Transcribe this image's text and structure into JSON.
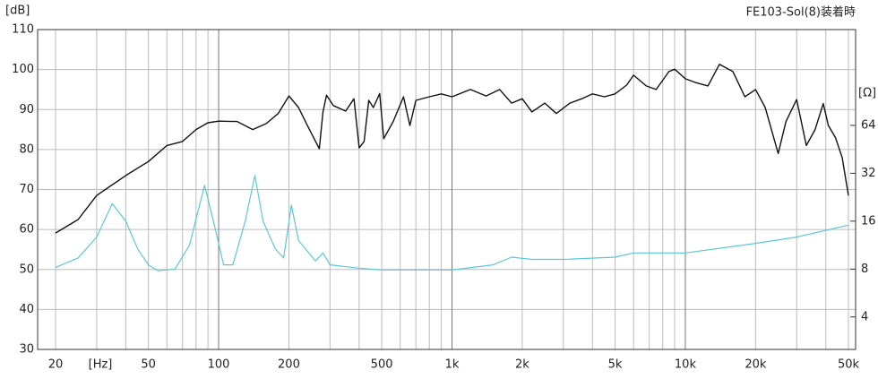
{
  "chart_data": {
    "type": "line",
    "title": "FE103-Sol(8)装着時",
    "y_unit": "[dB]",
    "x_unit": "[Hz]",
    "y2_unit": "[Ω]",
    "xscale": "log",
    "y2scale": "log",
    "grid": true,
    "xlim": [
      20,
      50000
    ],
    "ylim": [
      30,
      110
    ],
    "y2lim": [
      2.5,
      256
    ],
    "xticks": [
      20,
      50,
      100,
      200,
      500,
      {
        "value": 1000,
        "label": "1k"
      },
      {
        "value": 2000,
        "label": "2k"
      },
      {
        "value": 5000,
        "label": "5k"
      },
      {
        "value": 10000,
        "label": "10k"
      },
      {
        "value": 20000,
        "label": "20k"
      },
      {
        "value": 50000,
        "label": "50k"
      }
    ],
    "xminor": [
      30,
      40,
      60,
      70,
      80,
      90,
      300,
      400,
      600,
      700,
      800,
      900,
      3000,
      4000,
      6000,
      7000,
      8000,
      9000,
      30000,
      40000
    ],
    "yticks": [
      30,
      40,
      50,
      60,
      70,
      80,
      90,
      100,
      110
    ],
    "y2ticks": [
      4,
      8,
      16,
      32,
      64
    ],
    "series": [
      {
        "color": "#111111",
        "x": [
          20,
          25,
          30,
          40,
          50,
          60,
          70,
          80,
          90,
          100,
          120,
          140,
          160,
          180,
          200,
          220,
          240,
          270,
          280,
          290,
          310,
          350,
          380,
          400,
          420,
          440,
          460,
          490,
          510,
          560,
          620,
          660,
          700,
          800,
          900,
          1000,
          1200,
          1400,
          1600,
          1800,
          2000,
          2200,
          2500,
          2800,
          3200,
          3600,
          4000,
          4500,
          5000,
          5600,
          6000,
          6800,
          7500,
          8500,
          9000,
          10000,
          11000,
          12500,
          14000,
          16000,
          18000,
          20000,
          22000,
          25000,
          27000,
          30000,
          33000,
          36000,
          39000,
          41000,
          44000,
          47000,
          50000
        ],
        "values": [
          59.1,
          62.5,
          68.5,
          73.5,
          77,
          81,
          82,
          85,
          86.7,
          87.1,
          87,
          85,
          86.5,
          89,
          93.4,
          90.5,
          86,
          80.2,
          89.4,
          93.6,
          91,
          89.6,
          92.7,
          80.4,
          82,
          92.3,
          90.5,
          94,
          82.7,
          87,
          93.2,
          86,
          92.3,
          93.2,
          93.9,
          93.2,
          95,
          93.4,
          95,
          91.6,
          92.7,
          89.4,
          91.6,
          89,
          91.6,
          92.7,
          93.9,
          93.2,
          93.9,
          96.1,
          98.6,
          95.9,
          95,
          99.5,
          100.1,
          97.7,
          96.8,
          95.9,
          101.3,
          99.5,
          93.2,
          95,
          90.5,
          79,
          87,
          92.5,
          81,
          85,
          91.5,
          86,
          83,
          78,
          68.5
        ]
      },
      {
        "color": "#5bc8d6",
        "axis": "y2",
        "x": [
          20,
          25,
          30,
          35,
          40,
          45,
          50,
          55,
          65,
          75,
          87,
          95,
          105,
          115,
          130,
          143,
          155,
          175,
          190,
          205,
          220,
          260,
          280,
          300,
          400,
          500,
          1000,
          1500,
          1800,
          2200,
          3000,
          5000,
          6000,
          10000,
          20000,
          30000,
          50000
        ],
        "values": [
          8.2,
          9.4,
          12.7,
          20.6,
          16,
          10.7,
          8.5,
          7.8,
          8,
          11.3,
          26.9,
          16,
          8.5,
          8.5,
          16,
          31,
          16,
          10.7,
          9.4,
          20.2,
          12.1,
          9,
          10.1,
          8.5,
          8.1,
          7.9,
          7.9,
          8.5,
          9.5,
          9.2,
          9.2,
          9.5,
          10.1,
          10.1,
          11.6,
          12.7,
          15.1
        ]
      }
    ]
  }
}
